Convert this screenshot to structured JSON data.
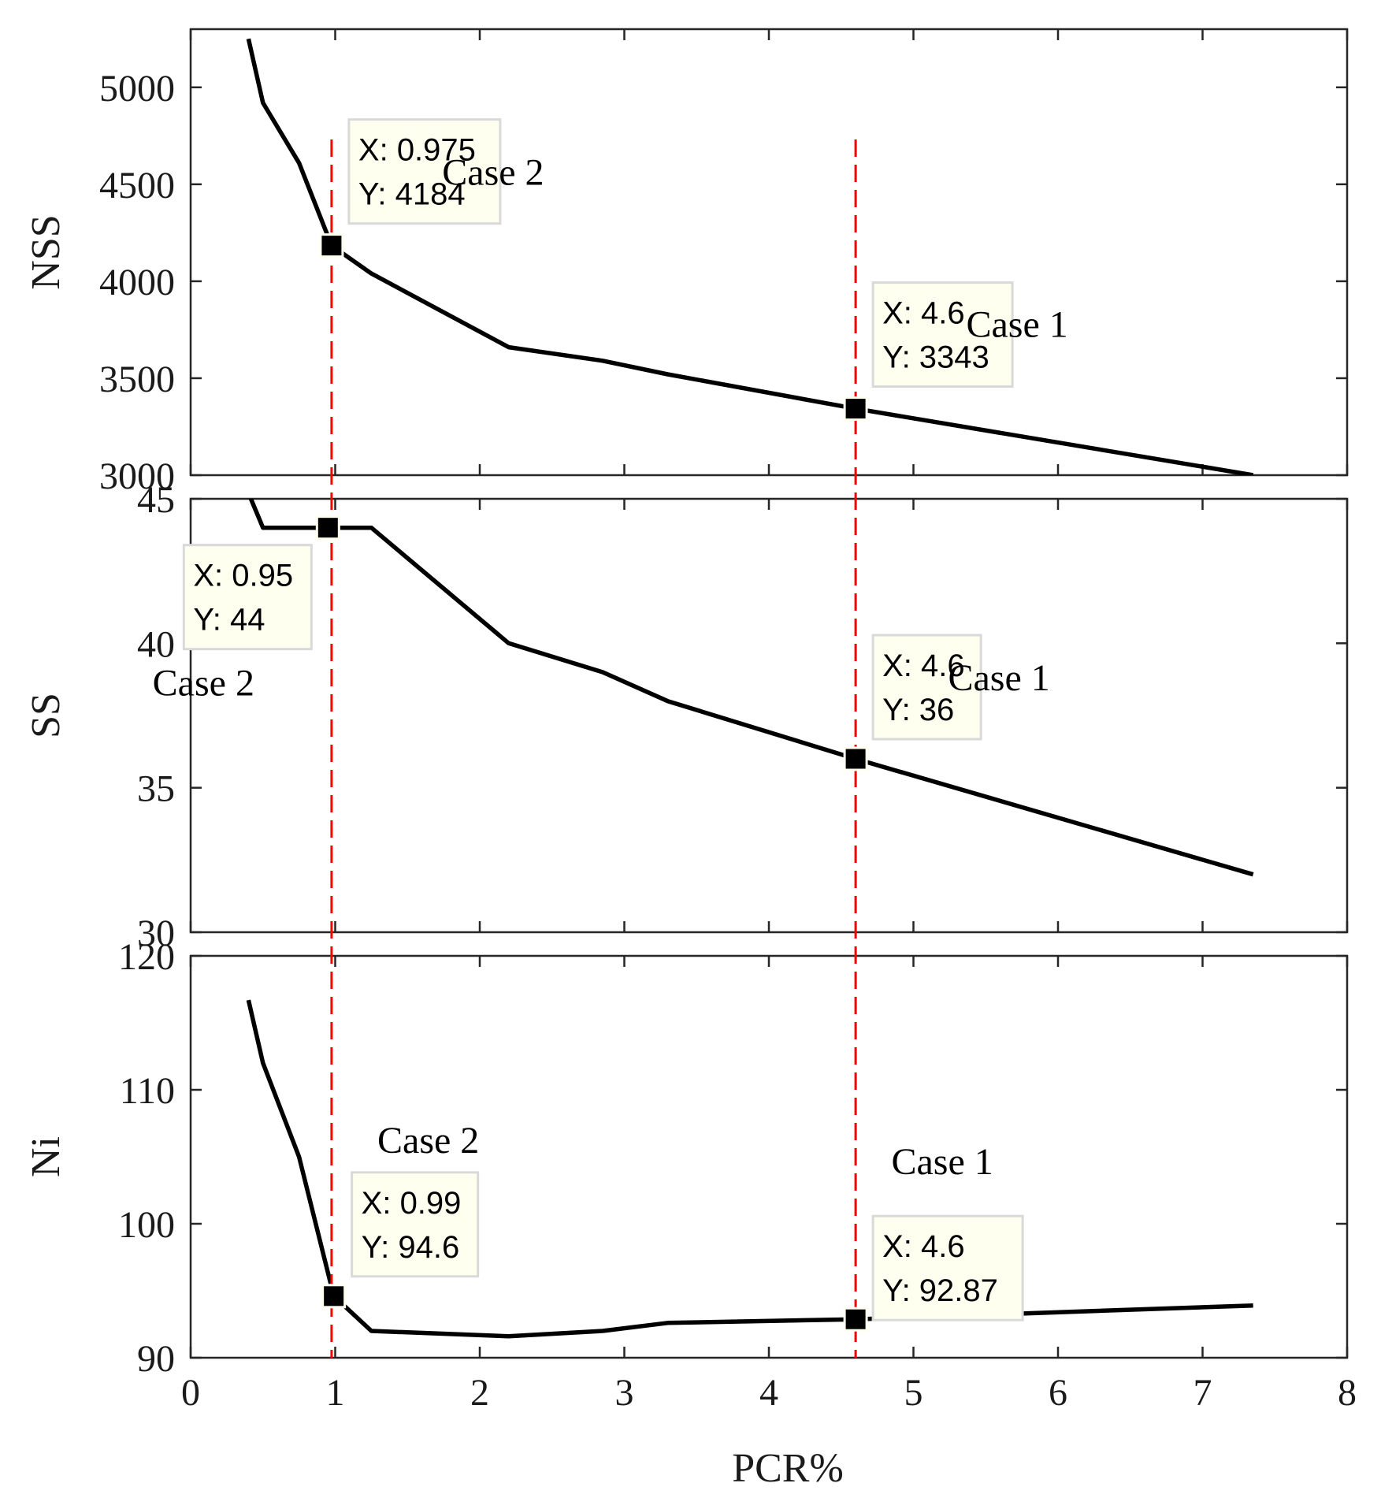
{
  "chart_data": {
    "type": "line",
    "xlabel": "PCR%",
    "xlim": [
      0,
      8
    ],
    "x_ticks": [
      0,
      1,
      2,
      3,
      4,
      5,
      6,
      7,
      8
    ],
    "colors": {
      "line": "#000000",
      "marker": "#000000",
      "guide": "#ff0000",
      "tip_fill": "#fffff0"
    },
    "guide_lines_x": [
      0.975,
      4.6
    ],
    "panels": [
      {
        "name": "nss",
        "ylabel": "NSS",
        "ylim": [
          3000,
          5300
        ],
        "y_ticks": [
          3000,
          3500,
          4000,
          4500,
          5000
        ],
        "series": [
          {
            "name": "NSS",
            "x": [
              0.4,
              0.5,
              0.75,
              0.975,
              1.25,
              2.2,
              2.85,
              3.3,
              4.6,
              7.35
            ],
            "y": [
              5250,
              4920,
              4610,
              4184,
              4040,
              3660,
              3590,
              3520,
              3343,
              3000
            ]
          }
        ],
        "datatips": [
          {
            "x": 0.975,
            "y": 4184,
            "x_text": "X: 0.975",
            "y_text": "Y: 4184",
            "case": "Case 2"
          },
          {
            "x": 4.6,
            "y": 3343,
            "x_text": "X: 4.6",
            "y_text": "Y: 3343",
            "case": "Case 1"
          }
        ]
      },
      {
        "name": "ss",
        "ylabel": "SS",
        "ylim": [
          30,
          45
        ],
        "y_ticks": [
          30,
          35,
          40,
          45
        ],
        "series": [
          {
            "name": "SS",
            "x": [
              0.4,
              0.5,
              0.95,
              1.25,
              2.2,
              2.85,
              3.3,
              4.6,
              7.35
            ],
            "y": [
              45.2,
              44,
              44,
              44,
              40,
              39,
              38,
              36,
              32
            ]
          }
        ],
        "datatips": [
          {
            "x": 0.95,
            "y": 44,
            "x_text": "X: 0.95",
            "y_text": "Y: 44",
            "case": "Case 2"
          },
          {
            "x": 4.6,
            "y": 36,
            "x_text": "X: 4.6",
            "y_text": "Y: 36",
            "case": "Case 1"
          }
        ]
      },
      {
        "name": "ni",
        "ylabel": "Ni",
        "ylim": [
          90,
          120
        ],
        "y_ticks": [
          90,
          100,
          110,
          120
        ],
        "series": [
          {
            "name": "Ni",
            "x": [
              0.4,
              0.5,
              0.75,
              0.99,
              1.25,
              2.2,
              2.85,
              3.3,
              4.6,
              7.35
            ],
            "y": [
              116.7,
              112,
              105,
              94.6,
              92,
              91.6,
              92,
              92.6,
              92.87,
              93.9
            ]
          }
        ],
        "datatips": [
          {
            "x": 0.99,
            "y": 94.6,
            "x_text": "X: 0.99",
            "y_text": "Y: 94.6",
            "case": "Case 2"
          },
          {
            "x": 4.6,
            "y": 92.87,
            "x_text": "X: 4.6",
            "y_text": "Y: 92.87",
            "case": "Case 1"
          }
        ]
      }
    ]
  }
}
